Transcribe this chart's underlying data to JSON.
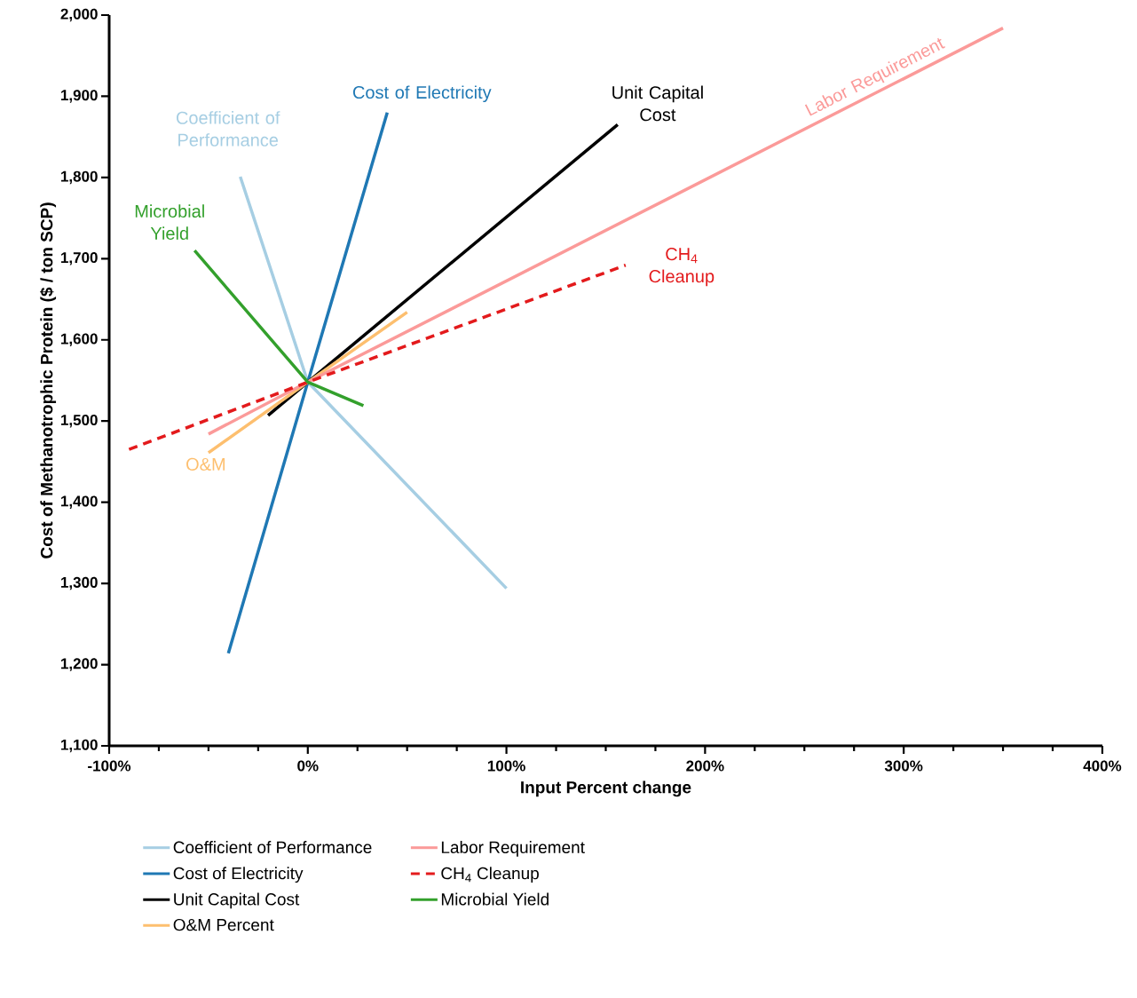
{
  "chart_data": {
    "type": "line",
    "xlabel": "Input Percent change",
    "ylabel": "Cost of  Methanotrophic Protein  ($ / ton  SCP)",
    "xlim": [
      -100,
      400
    ],
    "ylim": [
      1100,
      2000
    ],
    "xticks": [
      {
        "value": -100,
        "label": "-100%"
      },
      {
        "value": 0,
        "label": "0%"
      },
      {
        "value": 100,
        "label": "100%"
      },
      {
        "value": 200,
        "label": "200%"
      },
      {
        "value": 300,
        "label": "300%"
      },
      {
        "value": 400,
        "label": "400%"
      }
    ],
    "yticks": [
      {
        "value": 1100,
        "label": "1,100"
      },
      {
        "value": 1200,
        "label": "1,200"
      },
      {
        "value": 1300,
        "label": "1,300"
      },
      {
        "value": 1400,
        "label": "1,400"
      },
      {
        "value": 1500,
        "label": "1,500"
      },
      {
        "value": 1600,
        "label": "1,600"
      },
      {
        "value": 1700,
        "label": "1,700"
      },
      {
        "value": 1800,
        "label": "1,800"
      },
      {
        "value": 1900,
        "label": "1,900"
      },
      {
        "value": 2000,
        "label": "2,000"
      }
    ],
    "grid": false,
    "legend": "bottom",
    "marker": "none",
    "series": [
      {
        "name": "Coefficient of Performance",
        "color": "#a6cee3",
        "x": [
          -34,
          0,
          100
        ],
        "values": [
          1801,
          1548,
          1294
        ]
      },
      {
        "name": "Cost of  Electricity",
        "color": "#1f78b4",
        "x": [
          -40,
          0,
          40
        ],
        "values": [
          1214,
          1548,
          1880
        ]
      },
      {
        "name": "Unit Capital Cost",
        "color": "#000000",
        "x": [
          -20,
          0,
          156
        ],
        "values": [
          1507,
          1548,
          1865
        ]
      },
      {
        "name": "O&M Percent",
        "color": "#fdbf6f",
        "x": [
          -50,
          0,
          50
        ],
        "values": [
          1461,
          1548,
          1634
        ]
      },
      {
        "name": "Labor Requirement",
        "color": "#fb9a99",
        "x": [
          -50,
          0,
          350
        ],
        "values": [
          1484,
          1548,
          1984
        ]
      },
      {
        "name": "CH$_{4}$ Cleanup",
        "color": "#e31a1c",
        "line_style": "dashed",
        "x": [
          -90,
          0,
          160
        ],
        "values": [
          1465,
          1548,
          1692
        ]
      },
      {
        "name": "Microbial  Yield",
        "color": "#33a02c",
        "x": [
          -57,
          0,
          28
        ],
        "values": [
          1710,
          1548,
          1519
        ]
      }
    ],
    "annotations": [
      "Coefficient of Performance",
      "Cost of Electricity",
      "Unit Capital Cost",
      "O&M",
      "Labor Requirement",
      "CH$_{4}$ Cleanup",
      "Microbial Yield"
    ]
  }
}
